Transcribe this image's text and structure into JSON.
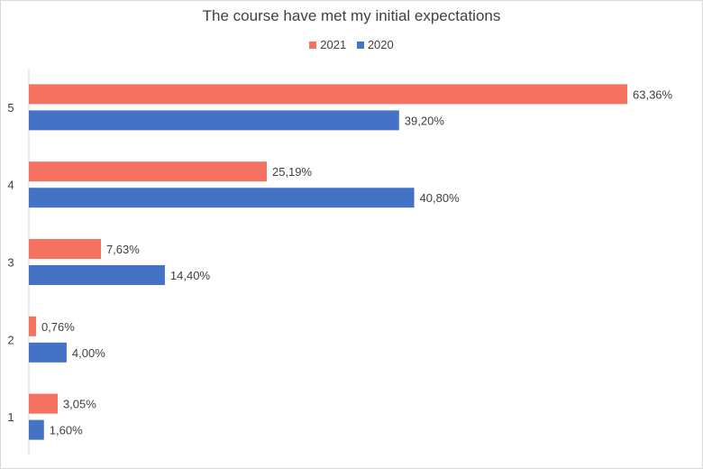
{
  "chart_data": {
    "type": "bar",
    "orientation": "horizontal",
    "title": "The course have met my initial expectations",
    "categories": [
      "5",
      "4",
      "3",
      "2",
      "1"
    ],
    "series": [
      {
        "name": "2021",
        "color": "#f4725f",
        "values": [
          63.36,
          25.19,
          7.63,
          0.76,
          3.05
        ],
        "labels": [
          "63,36%",
          "25,19%",
          "7,63%",
          "0,76%",
          "3,05%"
        ]
      },
      {
        "name": "2020",
        "color": "#4472c4",
        "values": [
          39.2,
          40.8,
          14.4,
          4.0,
          1.6
        ],
        "labels": [
          "39,20%",
          "40,80%",
          "14,40%",
          "4,00%",
          "1,60%"
        ]
      }
    ],
    "legend_order": [
      "2021",
      "2020"
    ],
    "legend_position": "top",
    "xlim": [
      0,
      63.36
    ],
    "grid": false
  }
}
